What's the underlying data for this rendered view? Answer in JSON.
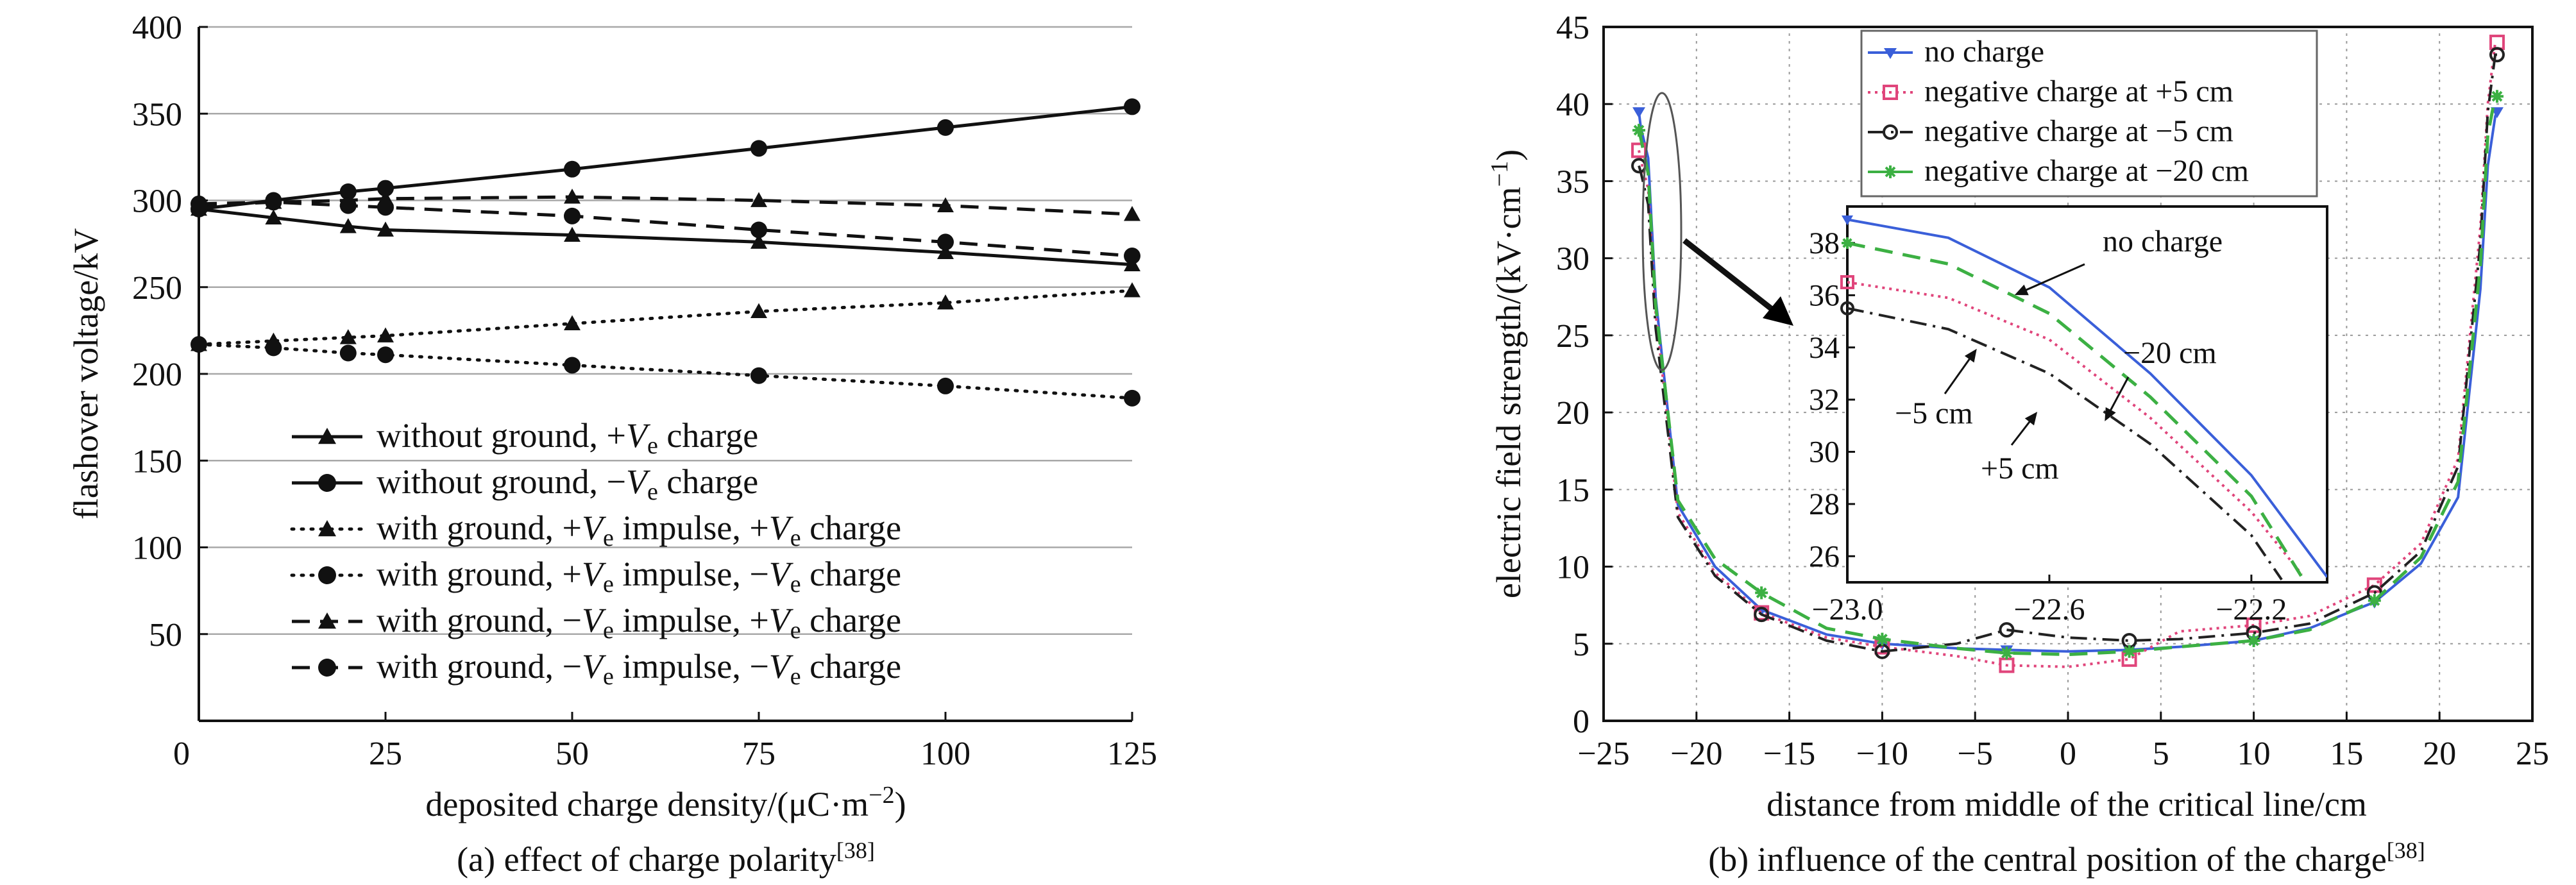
{
  "chart_data": [
    {
      "id": "a",
      "type": "line",
      "caption_text": "(a) effect of charge polarity",
      "caption_ref": "[38]",
      "xlabel_text": "deposited charge density/(μC·m",
      "xlabel_sup": "−2",
      "xlabel_end": ")",
      "ylabel": "flashover voltage/kV",
      "xlim": [
        0,
        125
      ],
      "ylim": [
        0,
        400
      ],
      "xticks": [
        0,
        25,
        50,
        75,
        100,
        125
      ],
      "yticks": [
        50,
        100,
        150,
        200,
        250,
        300,
        350,
        400
      ],
      "ytick_zero_label": "0",
      "grid": "horizontal",
      "legend_position": "lower-left",
      "series": [
        {
          "legend": [
            "without ground, +",
            "V",
            "e",
            " charge"
          ],
          "style": "solid",
          "marker": "triangle",
          "x": [
            0,
            10,
            20,
            25,
            50,
            75,
            100,
            125
          ],
          "y": [
            295,
            290,
            285,
            283,
            280,
            276,
            270,
            263
          ]
        },
        {
          "legend": [
            "without ground, −",
            "V",
            "e",
            " charge"
          ],
          "style": "solid",
          "marker": "circle",
          "x": [
            0,
            10,
            20,
            25,
            50,
            75,
            100,
            125
          ],
          "y": [
            295,
            300,
            305,
            307,
            318,
            330,
            342,
            354
          ]
        },
        {
          "legend": [
            "with ground, +",
            "V",
            "e",
            " impulse, +",
            "V",
            "e",
            " charge"
          ],
          "style": "dotted",
          "marker": "triangle",
          "x": [
            0,
            10,
            20,
            25,
            50,
            75,
            100,
            125
          ],
          "y": [
            217,
            219,
            221,
            222,
            229,
            236,
            241,
            248
          ]
        },
        {
          "legend": [
            "with ground, +",
            "V",
            "e",
            " impulse, −",
            "V",
            "e",
            " charge"
          ],
          "style": "dotted",
          "marker": "circle",
          "x": [
            0,
            10,
            20,
            25,
            50,
            75,
            100,
            125
          ],
          "y": [
            217,
            215,
            212,
            211,
            205,
            199,
            193,
            186
          ]
        },
        {
          "legend": [
            "with ground, −",
            "V",
            "e",
            " impulse, +",
            "V",
            "e",
            " charge"
          ],
          "style": "dashed",
          "marker": "triangle",
          "x": [
            0,
            10,
            20,
            25,
            50,
            75,
            100,
            125
          ],
          "y": [
            297,
            299,
            300,
            301,
            302,
            300,
            297,
            292
          ]
        },
        {
          "legend": [
            "with ground, −",
            "V",
            "e",
            " impulse, −",
            "V",
            "e",
            " charge"
          ],
          "style": "dashed",
          "marker": "circle",
          "x": [
            0,
            10,
            20,
            25,
            50,
            75,
            100,
            125
          ],
          "y": [
            298,
            299,
            297,
            296,
            291,
            283,
            276,
            268
          ]
        }
      ]
    },
    {
      "id": "b",
      "type": "line",
      "caption_text": "(b) influence of the central position of the charge",
      "caption_ref": "[38]",
      "xlabel": "distance from middle of the critical line/cm",
      "ylabel_text": "electric field strength/(kV·cm",
      "ylabel_sup": "−1",
      "ylabel_end": ")",
      "xlim": [
        -25,
        25
      ],
      "ylim": [
        0,
        45
      ],
      "xticks": [
        -25,
        -20,
        -15,
        -10,
        -5,
        0,
        5,
        10,
        15,
        20,
        25
      ],
      "xtick_labels": [
        "−25",
        "−20",
        "−15",
        "−10",
        "−5",
        "0",
        "5",
        "10",
        "15",
        "20",
        "25"
      ],
      "yticks": [
        0,
        5,
        10,
        15,
        20,
        25,
        30,
        35,
        40,
        45
      ],
      "grid": "dotted both",
      "legend_position": "top-center",
      "series": [
        {
          "name": "no charge",
          "color": "#3a5fd9",
          "style": "solid",
          "marker": "tri-down",
          "x": [
            -23.1,
            -23.0,
            -22.6,
            -22.2,
            -21,
            -19,
            -16.5,
            -13,
            -10,
            -6,
            -3.3,
            0,
            3.3,
            6,
            10,
            13,
            16.5,
            19,
            21,
            22.2,
            22.6,
            23.0,
            23.1
          ],
          "y": [
            39.5,
            38.5,
            36.5,
            27.5,
            14,
            10,
            7.2,
            5.6,
            5.0,
            4.7,
            4.6,
            4.5,
            4.6,
            4.8,
            5.2,
            6.0,
            7.7,
            10.2,
            14.5,
            28,
            36,
            39.2,
            39.5
          ]
        },
        {
          "name": "negative charge at +5 cm",
          "color": "#e0457b",
          "style": "dotted",
          "marker": "square",
          "x": [
            -23.1,
            -23.0,
            -22.6,
            -22.2,
            -21,
            -19,
            -16.5,
            -13,
            -10,
            -6,
            -3.3,
            0,
            3.3,
            6,
            10,
            13,
            16.5,
            19,
            21,
            22.2,
            22.6,
            23.0,
            23.1
          ],
          "y": [
            37.0,
            36.4,
            34.5,
            26.5,
            13.5,
            9.6,
            7.0,
            5.4,
            4.8,
            4.2,
            3.6,
            3.5,
            4.0,
            5.8,
            6.2,
            6.8,
            8.8,
            11.5,
            17,
            32,
            40,
            44.0,
            44.0
          ]
        },
        {
          "name": "negative charge at −5 cm",
          "color": "#222222",
          "style": "dash-dot",
          "marker": "circle",
          "x": [
            -23.1,
            -23.0,
            -22.6,
            -22.2,
            -21,
            -19,
            -16.5,
            -13,
            -10,
            -6,
            -3.3,
            0,
            3.3,
            6,
            10,
            13,
            16.5,
            19,
            21,
            22.2,
            22.6,
            23.0,
            23.1
          ],
          "y": [
            36.0,
            35.6,
            33.5,
            25.5,
            13.2,
            9.4,
            6.9,
            5.2,
            4.5,
            5.0,
            5.9,
            5.4,
            5.2,
            5.3,
            5.7,
            6.3,
            8.3,
            11.0,
            16.5,
            31,
            39.5,
            43.2,
            43.2
          ]
        },
        {
          "name": "negative charge at −20 cm",
          "color": "#3cb043",
          "style": "dashed",
          "marker": "star",
          "x": [
            -23.1,
            -23.0,
            -22.6,
            -22.2,
            -21,
            -19,
            -16.5,
            -13,
            -10,
            -6,
            -3.3,
            0,
            3.3,
            6,
            10,
            13,
            16.5,
            19,
            21,
            22.2,
            22.6,
            23.0,
            23.1
          ],
          "y": [
            38.3,
            37.8,
            35.5,
            27.0,
            14.3,
            10.5,
            8.3,
            6.0,
            5.3,
            4.7,
            4.4,
            4.3,
            4.5,
            4.8,
            5.2,
            5.9,
            7.8,
            10.6,
            15.5,
            29.5,
            38,
            40.5,
            40.5
          ]
        }
      ],
      "inset": {
        "xlim": [
          -23.0,
          -22.05
        ],
        "ylim": [
          25,
          39.4
        ],
        "xticks": [
          -23.0,
          -22.6,
          -22.2
        ],
        "xtick_labels": [
          "−23.0",
          "−22.6",
          "−22.2"
        ],
        "yticks": [
          26,
          28,
          30,
          32,
          34,
          36,
          38
        ],
        "series": [
          {
            "name": "no charge",
            "x": [
              -23.0,
              -22.8,
              -22.6,
              -22.4,
              -22.2,
              -22.05
            ],
            "y": [
              38.9,
              38.2,
              36.3,
              33.0,
              29.1,
              25.2
            ]
          },
          {
            "name": "negative charge at +5 cm",
            "x": [
              -23.0,
              -22.8,
              -22.6,
              -22.4,
              -22.2,
              -22.1
            ],
            "y": [
              36.5,
              35.9,
              34.3,
              31.3,
              27.7,
              25.3
            ]
          },
          {
            "name": "negative charge at −5 cm",
            "x": [
              -23.0,
              -22.8,
              -22.6,
              -22.4,
              -22.2,
              -22.14
            ],
            "y": [
              35.5,
              34.7,
              33.0,
              30.3,
              26.8,
              25.1
            ]
          },
          {
            "name": "negative charge at −20 cm",
            "x": [
              -23.0,
              -22.8,
              -22.6,
              -22.4,
              -22.2,
              -22.1
            ],
            "y": [
              38.0,
              37.2,
              35.3,
              32.1,
              28.3,
              25.2
            ]
          }
        ],
        "annotations": [
          {
            "text": "no charge"
          },
          {
            "text": "−20 cm"
          },
          {
            "text": "−5 cm"
          },
          {
            "text": "+5 cm"
          }
        ]
      }
    }
  ]
}
